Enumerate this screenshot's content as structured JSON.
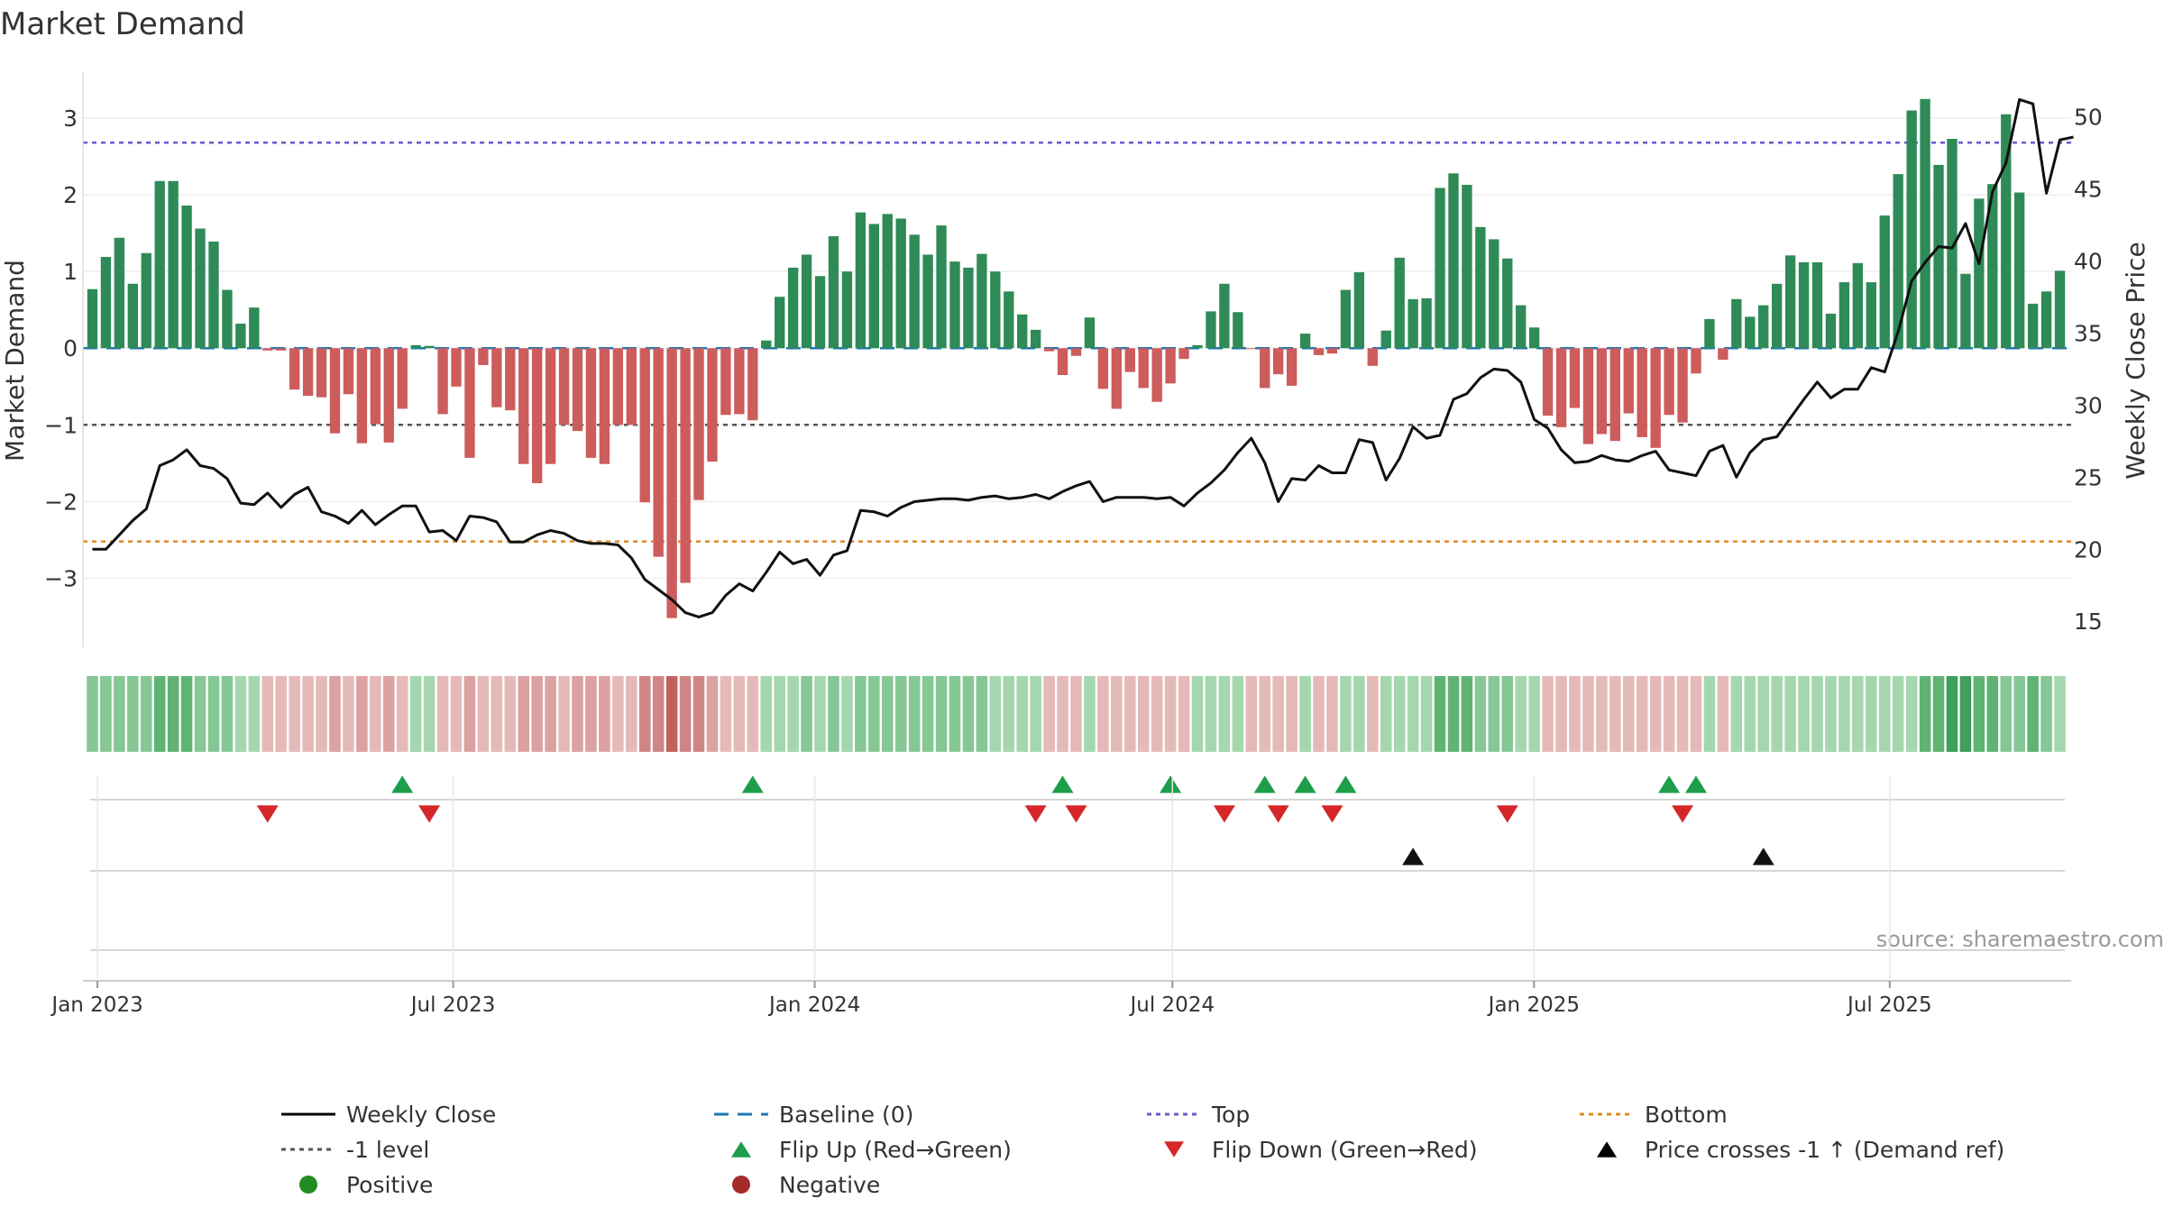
{
  "chart_data": {
    "type": "bar",
    "title": "Market Demand",
    "ylabel": "Market Demand",
    "y2label": "Weekly Close Price",
    "ylim": [
      -3.9,
      3.6
    ],
    "y2lim": [
      13.2,
      53.1
    ],
    "yticks": [
      3,
      2,
      1,
      0,
      -1,
      -2,
      -3
    ],
    "ytick_labels": [
      "3",
      "2",
      "1",
      "0",
      "−1",
      "−2",
      "−3"
    ],
    "y2ticks": [
      50,
      45,
      40,
      35,
      30,
      25,
      20,
      15
    ],
    "y2tick_labels": [
      "50",
      "45",
      "40",
      "35",
      "30",
      "25",
      "20",
      "15"
    ],
    "xaxis": {
      "start": "2022-12-26",
      "end": "2025-09-29",
      "ticks": [
        "2023-01-01",
        "2023-07-01",
        "2024-01-01",
        "2024-07-01",
        "2025-01-01",
        "2025-07-01"
      ],
      "tick_labels": [
        "Jan 2023",
        "Jul 2023",
        "Jan 2024",
        "Jul 2024",
        "Jan 2025",
        "Jul 2025"
      ]
    },
    "reference_lines": {
      "baseline": 0,
      "top": 2.68,
      "minus_one": -1,
      "bottom": -2.52
    },
    "series": [
      {
        "name": "Market Demand",
        "values": [
          0.77,
          1.19,
          1.44,
          0.84,
          1.24,
          2.18,
          2.18,
          1.86,
          1.56,
          1.39,
          0.76,
          0.32,
          0.53,
          -0.03,
          -0.03,
          -0.54,
          -0.62,
          -0.64,
          -1.11,
          -0.6,
          -1.24,
          -0.99,
          -1.23,
          -0.79,
          0.04,
          0.03,
          -0.86,
          -0.5,
          -1.43,
          -0.22,
          -0.77,
          -0.81,
          -1.51,
          -1.76,
          -1.51,
          -1.0,
          -1.08,
          -1.43,
          -1.51,
          -1.0,
          -1.0,
          -2.01,
          -2.72,
          -3.52,
          -3.06,
          -1.98,
          -1.48,
          -0.87,
          -0.86,
          -0.94,
          0.1,
          0.67,
          1.05,
          1.22,
          0.94,
          1.46,
          1.0,
          1.77,
          1.62,
          1.75,
          1.69,
          1.48,
          1.22,
          1.6,
          1.13,
          1.05,
          1.23,
          1.0,
          0.74,
          0.44,
          0.24,
          -0.04,
          -0.35,
          -0.1,
          0.4,
          -0.53,
          -0.79,
          -0.31,
          -0.52,
          -0.7,
          -0.46,
          -0.14,
          0.04,
          0.48,
          0.84,
          0.47,
          -0.01,
          -0.52,
          -0.34,
          -0.49,
          0.19,
          -0.09,
          -0.07,
          0.76,
          0.99,
          -0.23,
          0.23,
          1.18,
          0.64,
          0.65,
          2.09,
          2.28,
          2.13,
          1.58,
          1.42,
          1.17,
          0.56,
          0.27,
          -0.88,
          -1.03,
          -0.78,
          -1.25,
          -1.12,
          -1.21,
          -0.85,
          -1.16,
          -1.3,
          -0.87,
          -0.97,
          -0.33,
          0.38,
          -0.15,
          0.64,
          0.41,
          0.56,
          0.84,
          1.21,
          1.12,
          1.12,
          0.45,
          0.86,
          1.11,
          0.86,
          1.73,
          2.27,
          3.1,
          3.25,
          2.39,
          2.73,
          0.97,
          1.95,
          2.14,
          3.05,
          2.03,
          0.58,
          0.74,
          1.01
        ]
      },
      {
        "name": "Weekly Close",
        "values": [
          20.0,
          20.0,
          21.0,
          22.0,
          22.8,
          25.8,
          26.2,
          26.9,
          25.8,
          25.6,
          24.9,
          23.2,
          23.1,
          23.9,
          22.9,
          23.8,
          24.3,
          22.6,
          22.3,
          21.8,
          22.7,
          21.7,
          22.4,
          23.0,
          23.0,
          21.2,
          21.3,
          20.6,
          22.3,
          22.2,
          21.9,
          20.5,
          20.5,
          21.0,
          21.3,
          21.1,
          20.6,
          20.4,
          20.4,
          20.3,
          19.4,
          17.9,
          17.2,
          16.5,
          15.6,
          15.3,
          15.6,
          16.8,
          17.6,
          17.1,
          18.4,
          19.8,
          19.0,
          19.3,
          18.2,
          19.6,
          19.9,
          22.7,
          22.6,
          22.3,
          22.9,
          23.3,
          23.4,
          23.5,
          23.5,
          23.4,
          23.6,
          23.7,
          23.5,
          23.6,
          23.8,
          23.5,
          24.0,
          24.4,
          24.7,
          23.3,
          23.6,
          23.6,
          23.6,
          23.5,
          23.6,
          23.0,
          23.9,
          24.6,
          25.5,
          26.7,
          27.7,
          26.0,
          23.3,
          24.9,
          24.8,
          25.8,
          25.3,
          25.3,
          27.6,
          27.4,
          24.8,
          26.3,
          28.5,
          27.7,
          27.9,
          30.4,
          30.8,
          31.9,
          32.5,
          32.4,
          31.6,
          29.0,
          28.4,
          26.9,
          26.0,
          26.1,
          26.5,
          26.2,
          26.1,
          26.5,
          26.8,
          25.5,
          25.3,
          25.1,
          26.8,
          27.2,
          25.0,
          26.7,
          27.6,
          27.8,
          29.1,
          30.4,
          31.6,
          30.5,
          31.1,
          31.1,
          32.6,
          32.3,
          35.1,
          38.6,
          39.9,
          41.0,
          40.9,
          42.6,
          39.8,
          44.8,
          46.8,
          51.2,
          50.9,
          44.7,
          48.4,
          48.6
        ]
      }
    ],
    "shading_levels": [
      2,
      2,
      2,
      2,
      2,
      3,
      3,
      3,
      2,
      2,
      2,
      1,
      1,
      1,
      1,
      1,
      1,
      1,
      2,
      1,
      2,
      1,
      2,
      1,
      1,
      1,
      1,
      1,
      2,
      1,
      1,
      1,
      2,
      2,
      2,
      1,
      2,
      2,
      2,
      1,
      1,
      3,
      3,
      4,
      3,
      3,
      2,
      1,
      1,
      1,
      1,
      1,
      1,
      2,
      1,
      2,
      1,
      2,
      2,
      2,
      2,
      2,
      2,
      2,
      2,
      2,
      2,
      1,
      1,
      1,
      1,
      1,
      1,
      1,
      1,
      1,
      1,
      1,
      1,
      1,
      1,
      1,
      1,
      1,
      1,
      1,
      1,
      1,
      1,
      1,
      1,
      1,
      1,
      1,
      1,
      1,
      1,
      1,
      1,
      1,
      3,
      3,
      3,
      2,
      2,
      2,
      1,
      1,
      1,
      1,
      1,
      1,
      1,
      1,
      1,
      1,
      1,
      1,
      1,
      1,
      1,
      1,
      1,
      1,
      1,
      1,
      1,
      1,
      1,
      1,
      1,
      1,
      1,
      1,
      1,
      1,
      3,
      3,
      4,
      4,
      3,
      3,
      2,
      2,
      3,
      2,
      1,
      1,
      1
    ],
    "flip_up_weeks": [
      23,
      49,
      72,
      80,
      87,
      90,
      93,
      117,
      119
    ],
    "flip_down_weeks": [
      13,
      25,
      70,
      73,
      84,
      88,
      92,
      105,
      118
    ],
    "price_cross_weeks": [
      98,
      124
    ],
    "source": "source: sharemaestro.com",
    "legend": {
      "placement": "bottom",
      "entries": [
        {
          "label": "Weekly Close",
          "symbol": "line",
          "color": "#000000"
        },
        {
          "label": "Baseline (0)",
          "symbol": "dash",
          "color": "#1f77b4"
        },
        {
          "label": "Top",
          "symbol": "dot",
          "color": "#6a5acd"
        },
        {
          "label": "Bottom",
          "symbol": "dot",
          "color": "#e08a1e"
        },
        {
          "label": "-1 level",
          "symbol": "dot",
          "color": "#555555"
        },
        {
          "label": "Flip Up (Red→Green)",
          "symbol": "triangle-up",
          "color": "#1e9e4a"
        },
        {
          "label": "Flip Down (Green→Red)",
          "symbol": "triangle-down",
          "color": "#d62728"
        },
        {
          "label": "Price crosses -1 ↑ (Demand ref)",
          "symbol": "triangle-up",
          "color": "#000000"
        },
        {
          "label": "Positive",
          "symbol": "circle",
          "color": "#228b22"
        },
        {
          "label": "Negative",
          "symbol": "circle",
          "color": "#a52a2a"
        }
      ]
    },
    "colors": {
      "positive_bar": "#2e8b57",
      "negative_bar": "#cd5c5c"
    }
  }
}
